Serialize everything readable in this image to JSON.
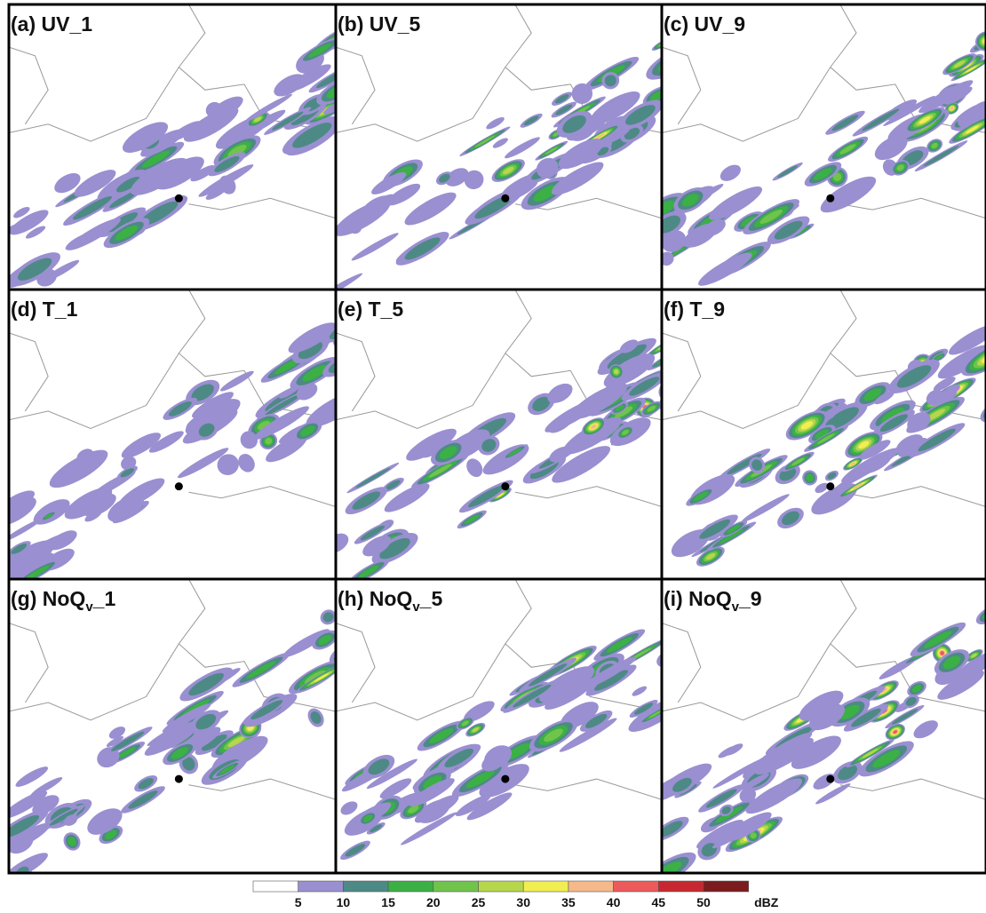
{
  "panels": [
    {
      "label": "(a) UV_1"
    },
    {
      "label": "(b) UV_5"
    },
    {
      "label": "(c) UV_9"
    },
    {
      "label": "(d) T_1"
    },
    {
      "label": "(e) T_5"
    },
    {
      "label": "(f) T_9"
    },
    {
      "label": {
        "main": "(g) NoQ",
        "sub": "v",
        "tail": "_1"
      }
    },
    {
      "label": {
        "main": "(h) NoQ",
        "sub": "v",
        "tail": "_5"
      }
    },
    {
      "label": {
        "main": "(i) NoQ",
        "sub": "v",
        "tail": "_9"
      }
    }
  ],
  "colorbar": {
    "levels": [
      5,
      10,
      15,
      20,
      25,
      30,
      35,
      40,
      45,
      50
    ],
    "unit": "dBZ",
    "colors": [
      "#ffffff",
      "#9a8fd0",
      "#4d8a86",
      "#3bb044",
      "#70c44c",
      "#b6d64b",
      "#f1ee52",
      "#f6b98a",
      "#ec5a5c",
      "#c72830",
      "#7b1b1e"
    ]
  }
}
